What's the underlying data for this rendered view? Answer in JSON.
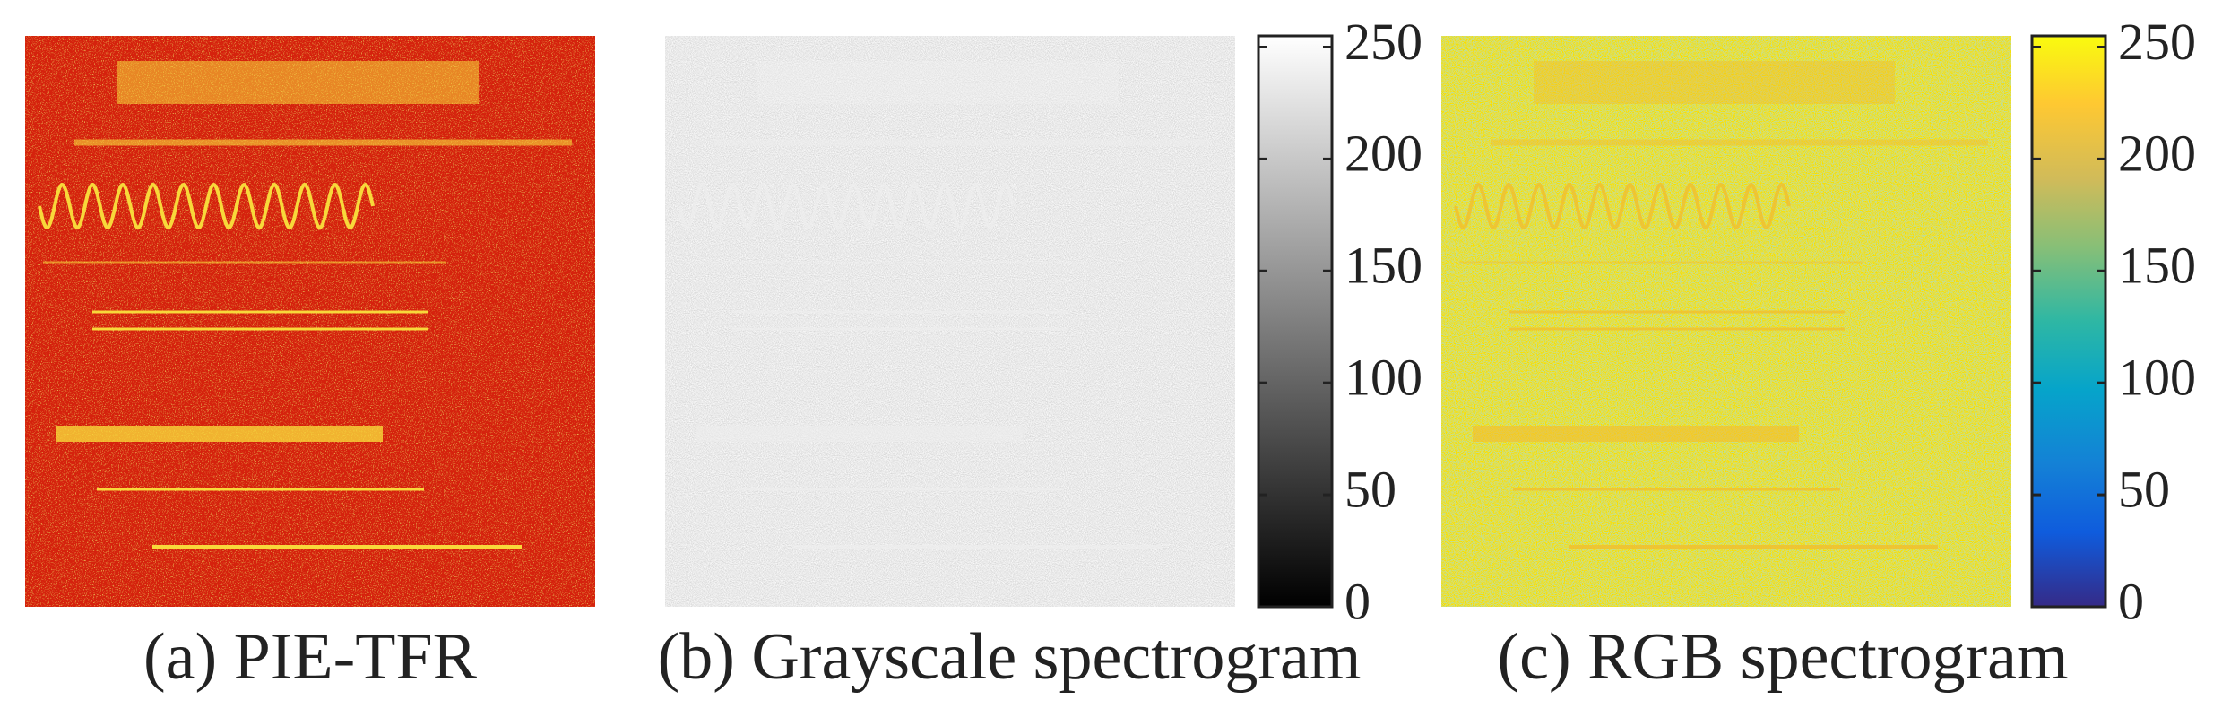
{
  "panels": [
    {
      "caption": "(a) PIE-TFR"
    },
    {
      "caption": "(b) Grayscale spectrogram",
      "colorbar": {
        "lim": [
          0,
          255
        ],
        "ticks": [
          0,
          50,
          100,
          150,
          200,
          250
        ]
      }
    },
    {
      "caption": "(c) RGB spectrogram",
      "colorbar": {
        "lim": [
          0,
          255
        ],
        "ticks": [
          0,
          50,
          100,
          150,
          200,
          250
        ]
      }
    }
  ]
}
